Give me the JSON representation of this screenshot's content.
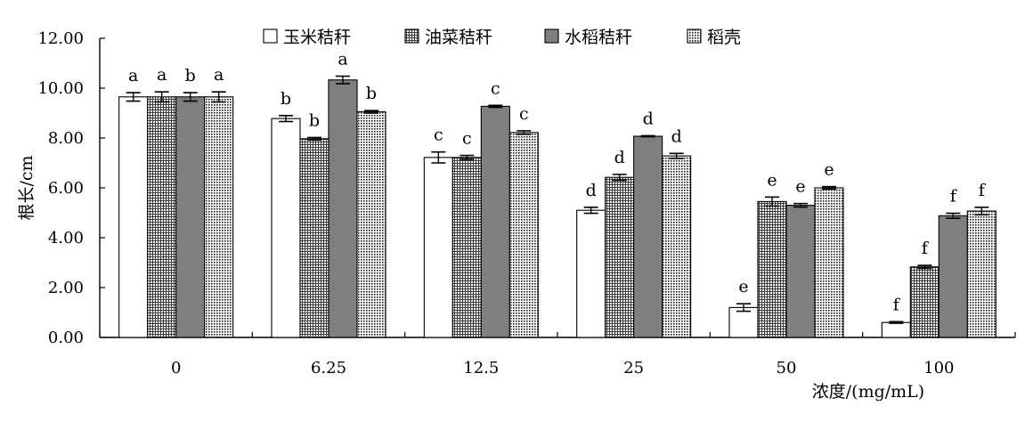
{
  "chart_data": {
    "type": "bar",
    "title": "",
    "xlabel": "浓度/(mg/mL)",
    "ylabel": "根长/cm",
    "ylim": [
      0,
      12
    ],
    "yticks": [
      "0.00",
      "2.00",
      "4.00",
      "6.00",
      "8.00",
      "10.00",
      "12.00"
    ],
    "categories": [
      "0",
      "6.25",
      "12.5",
      "25",
      "50",
      "100"
    ],
    "legend_position": "top",
    "grid": false,
    "series": [
      {
        "name": "玉米秸秆",
        "pattern": "white",
        "values": [
          9.65,
          8.78,
          7.22,
          5.1,
          1.2,
          0.6
        ],
        "errors": [
          0.17,
          0.12,
          0.22,
          0.12,
          0.15,
          0.03
        ],
        "letters": [
          "a",
          "b",
          "c",
          "d",
          "e",
          "f"
        ]
      },
      {
        "name": "油菜秸秆",
        "pattern": "crosshatch",
        "values": [
          9.65,
          7.97,
          7.22,
          6.42,
          5.45,
          2.83
        ],
        "errors": [
          0.2,
          0.05,
          0.08,
          0.12,
          0.18,
          0.06
        ],
        "letters": [
          "a",
          "b",
          "c",
          "d",
          "e",
          "f"
        ]
      },
      {
        "name": "水稻秸秆",
        "pattern": "gray",
        "values": [
          9.65,
          10.33,
          9.27,
          8.07,
          5.3,
          4.88
        ],
        "errors": [
          0.17,
          0.15,
          0.04,
          0.02,
          0.07,
          0.1
        ],
        "letters": [
          "b",
          "a",
          "c",
          "d",
          "e",
          "f"
        ]
      },
      {
        "name": "稻壳",
        "pattern": "dots",
        "values": [
          9.65,
          9.05,
          8.22,
          7.28,
          6.0,
          5.07
        ],
        "errors": [
          0.2,
          0.05,
          0.07,
          0.1,
          0.05,
          0.15
        ],
        "letters": [
          "a",
          "b",
          "c",
          "d",
          "e",
          "f"
        ]
      }
    ]
  }
}
